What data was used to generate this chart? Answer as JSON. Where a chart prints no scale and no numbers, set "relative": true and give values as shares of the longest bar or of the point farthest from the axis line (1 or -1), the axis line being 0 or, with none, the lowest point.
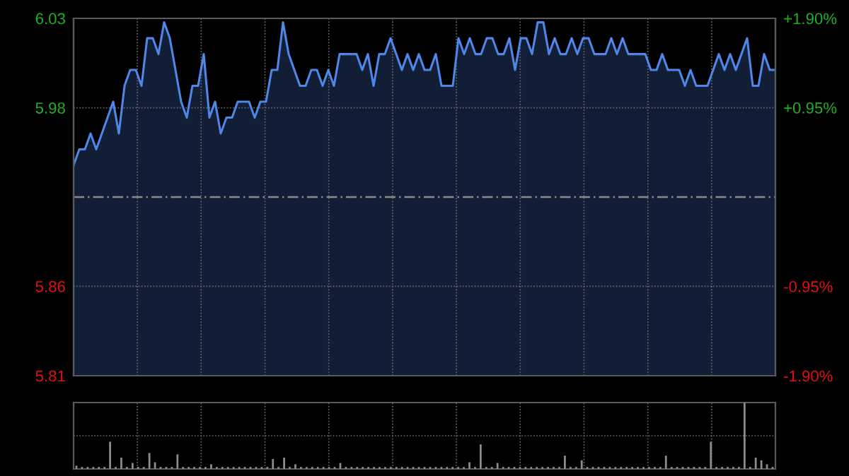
{
  "chart_data": [
    {
      "type": "area",
      "categories": [
        null,
        null,
        null,
        null,
        null,
        null,
        null,
        null,
        null,
        null,
        null,
        null,
        null,
        null,
        null,
        null,
        null,
        null,
        null,
        null,
        null,
        null,
        null,
        null,
        null,
        null,
        null,
        null,
        null,
        null,
        null,
        null,
        null,
        null,
        null,
        null,
        null,
        null,
        null,
        null,
        null,
        null,
        null,
        null,
        null,
        null,
        null,
        null,
        null,
        null,
        null,
        null,
        null,
        null,
        null,
        null,
        null,
        null,
        null,
        null,
        null,
        null,
        null,
        null,
        null,
        null,
        null,
        null,
        null,
        null,
        null,
        null,
        null,
        null,
        null,
        null,
        null,
        null,
        null,
        null,
        null,
        null,
        null,
        null,
        null,
        null,
        null,
        null,
        null,
        null,
        null,
        null,
        null,
        null,
        null,
        null,
        null,
        null,
        null,
        null,
        null,
        null,
        null,
        null,
        null,
        null,
        null,
        null,
        null,
        null,
        null,
        null,
        null,
        null,
        null,
        null,
        null,
        null,
        null,
        null,
        null,
        null,
        null,
        null,
        null
      ],
      "series": [
        {
          "color": "#4f86e8",
          "values": [
            5.94,
            5.95,
            5.95,
            5.96,
            5.95,
            5.96,
            5.97,
            5.98,
            5.96,
            5.99,
            6.0,
            6.0,
            5.99,
            6.02,
            6.02,
            6.01,
            6.03,
            6.02,
            6.0,
            5.98,
            5.97,
            5.99,
            5.99,
            6.01,
            5.97,
            5.98,
            5.96,
            5.97,
            5.97,
            5.98,
            5.98,
            5.98,
            5.97,
            5.98,
            5.98,
            6.0,
            6.0,
            6.03,
            6.01,
            6.0,
            5.99,
            5.99,
            6.0,
            6.0,
            5.99,
            6.0,
            5.99,
            6.01,
            6.01,
            6.01,
            6.01,
            6.0,
            6.01,
            5.99,
            6.01,
            6.01,
            6.02,
            6.01,
            6.0,
            6.01,
            6.0,
            6.01,
            6.0,
            6.0,
            6.01,
            5.99,
            5.99,
            5.99,
            6.02,
            6.01,
            6.02,
            6.01,
            6.01,
            6.02,
            6.02,
            6.01,
            6.01,
            6.02,
            6.0,
            6.02,
            6.02,
            6.01,
            6.03,
            6.03,
            6.01,
            6.02,
            6.01,
            6.01,
            6.02,
            6.01,
            6.02,
            6.02,
            6.01,
            6.01,
            6.01,
            6.02,
            6.01,
            6.02,
            6.01,
            6.01,
            6.01,
            6.01,
            6.0,
            6.0,
            6.01,
            6.0,
            6.0,
            6.0,
            5.99,
            6.0,
            5.99,
            5.99,
            5.99,
            6.0,
            6.01,
            6.0,
            6.01,
            6.0,
            6.01,
            6.02,
            5.99,
            5.99,
            6.01,
            6.0,
            6.0
          ]
        }
      ],
      "ylim": [
        5.8075,
        6.0325
      ],
      "yticks": [
        {
          "value": 5.8075,
          "label": "5.81"
        },
        {
          "value": 5.8638,
          "label": "5.86"
        },
        {
          "value": 5.9762,
          "label": "5.98"
        },
        {
          "value": 6.0325,
          "label": "6.03"
        }
      ],
      "y2lim": [
        -1.9,
        1.9
      ],
      "y2ticks": [
        {
          "value": -1.9,
          "label": "-1.90%"
        },
        {
          "value": -0.95,
          "label": "-0.95%"
        },
        {
          "value": 0.95,
          "label": "+0.95%"
        },
        {
          "value": 1.9,
          "label": "+1.90%"
        }
      ],
      "ref_lines": [
        {
          "axis": "y",
          "value": 5.92,
          "color": "#8a8a8a",
          "line_style": "dashed"
        }
      ],
      "grid": true,
      "tick_labels": "y"
    },
    {
      "type": "bar",
      "relative": true,
      "categories": [
        null,
        null,
        null,
        null,
        null,
        null,
        null,
        null,
        null,
        null,
        null,
        null,
        null,
        null,
        null,
        null,
        null,
        null,
        null,
        null,
        null,
        null,
        null,
        null,
        null,
        null,
        null,
        null,
        null,
        null,
        null,
        null,
        null,
        null,
        null,
        null,
        null,
        null,
        null,
        null,
        null,
        null,
        null,
        null,
        null,
        null,
        null,
        null,
        null,
        null,
        null,
        null,
        null,
        null,
        null,
        null,
        null,
        null,
        null,
        null,
        null,
        null,
        null,
        null,
        null,
        null,
        null,
        null,
        null,
        null,
        null,
        null,
        null,
        null,
        null,
        null,
        null,
        null,
        null,
        null,
        null,
        null,
        null,
        null,
        null,
        null,
        null,
        null,
        null,
        null,
        null,
        null,
        null,
        null,
        null,
        null,
        null,
        null,
        null,
        null,
        null,
        null,
        null,
        null,
        null,
        null,
        null,
        null,
        null,
        null,
        null,
        null,
        null,
        null,
        null,
        null,
        null,
        null,
        null,
        null,
        null,
        null,
        null,
        null,
        null
      ],
      "series": [
        {
          "color": "#8c8c8c",
          "values": [
            0.05,
            0.03,
            0.03,
            0.03,
            0.03,
            0.03,
            0.41,
            0.03,
            0.17,
            0.03,
            0.09,
            0.03,
            0.03,
            0.24,
            0.1,
            0.03,
            0.03,
            0.03,
            0.22,
            0.03,
            0.03,
            0.03,
            0.03,
            0.03,
            0.07,
            0.03,
            0.03,
            0.03,
            0.03,
            0.03,
            0.03,
            0.03,
            0.03,
            0.03,
            0.03,
            0.15,
            0.03,
            0.17,
            0.03,
            0.07,
            0.03,
            0.03,
            0.03,
            0.03,
            0.03,
            0.03,
            0.03,
            0.09,
            0.03,
            0.03,
            0.03,
            0.03,
            0.03,
            0.03,
            0.03,
            0.03,
            0.03,
            0.03,
            0.03,
            0.03,
            0.03,
            0.03,
            0.03,
            0.03,
            0.03,
            0.03,
            0.03,
            0.03,
            0.03,
            0.03,
            0.1,
            0.03,
            0.37,
            0.03,
            0.03,
            0.09,
            0.03,
            0.03,
            0.03,
            0.03,
            0.03,
            0.03,
            0.03,
            0.03,
            0.03,
            0.03,
            0.03,
            0.2,
            0.03,
            0.03,
            0.13,
            0.03,
            0.03,
            0.03,
            0.03,
            0.03,
            0.03,
            0.03,
            0.03,
            0.03,
            0.03,
            0.03,
            0.03,
            0.03,
            0.03,
            0.2,
            0.03,
            0.03,
            0.03,
            0.03,
            0.03,
            0.03,
            0.03,
            0.41,
            0.03,
            0.03,
            0.03,
            0.03,
            0.03,
            1,
            0.03,
            0.17,
            0.13,
            0.07,
            0.03
          ]
        }
      ],
      "grid": true,
      "tick_labels": false
    }
  ]
}
